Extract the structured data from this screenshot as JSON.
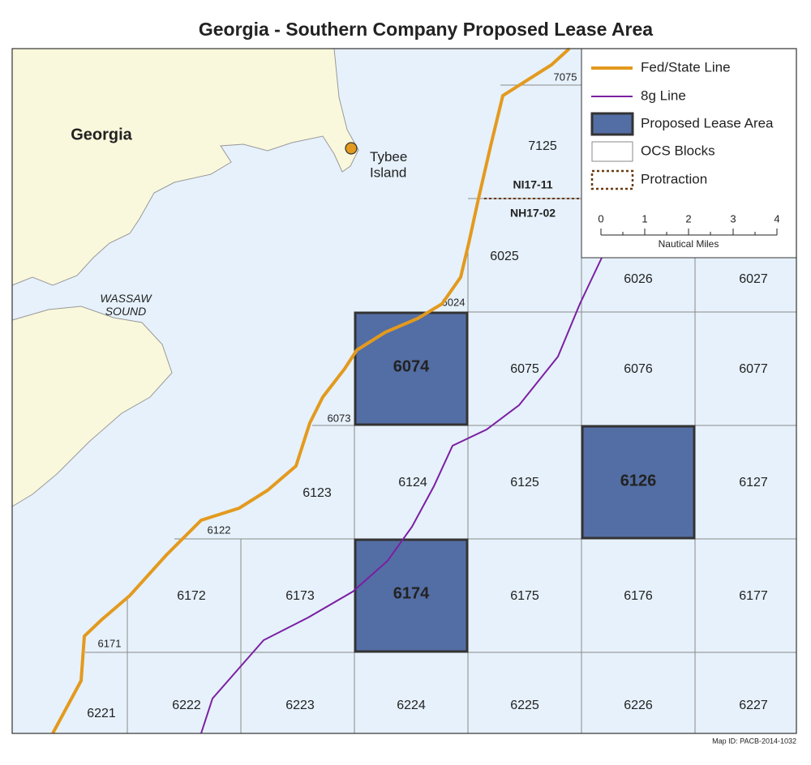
{
  "title": "Georgia - Southern Company Proposed Lease Area",
  "legend": [
    {
      "label": "Fed/State Line",
      "kind": "line",
      "color": "#e39a1e"
    },
    {
      "label": "8g Line",
      "kind": "line",
      "color": "#7b1fa2"
    },
    {
      "label": "Proposed Lease Area",
      "kind": "lease",
      "color": "#536ea4"
    },
    {
      "label": "OCS Blocks",
      "kind": "block",
      "color": "#ffffff"
    },
    {
      "label": "Protraction",
      "kind": "protraction",
      "color": "#6b3a10"
    }
  ],
  "scale_bar": {
    "labels": [
      "0",
      "1",
      "2",
      "3",
      "4"
    ],
    "unit": "Nautical Miles"
  },
  "places": {
    "state": "Georgia",
    "island": "Tybee\nIsland",
    "sound": "WASSAW\nSOUND"
  },
  "protractions": {
    "north": "NI17-11",
    "south": "NH17-02"
  },
  "blocks": [
    {
      "label": "7075"
    },
    {
      "label": "7125"
    },
    {
      "label": "6024"
    },
    {
      "label": "6025"
    },
    {
      "label": "6026"
    },
    {
      "label": "6027"
    },
    {
      "label": "6073"
    },
    {
      "label": "6074",
      "lease": true
    },
    {
      "label": "6075"
    },
    {
      "label": "6076"
    },
    {
      "label": "6077"
    },
    {
      "label": "6122"
    },
    {
      "label": "6123"
    },
    {
      "label": "6124"
    },
    {
      "label": "6125"
    },
    {
      "label": "6126",
      "lease": true
    },
    {
      "label": "6127"
    },
    {
      "label": "6171"
    },
    {
      "label": "6172"
    },
    {
      "label": "6173"
    },
    {
      "label": "6174",
      "lease": true
    },
    {
      "label": "6175"
    },
    {
      "label": "6176"
    },
    {
      "label": "6177"
    },
    {
      "label": "6221"
    },
    {
      "label": "6222"
    },
    {
      "label": "6223"
    },
    {
      "label": "6224"
    },
    {
      "label": "6225"
    },
    {
      "label": "6226"
    },
    {
      "label": "6227"
    }
  ],
  "map_id": "Map ID: PACB-2014-1032"
}
